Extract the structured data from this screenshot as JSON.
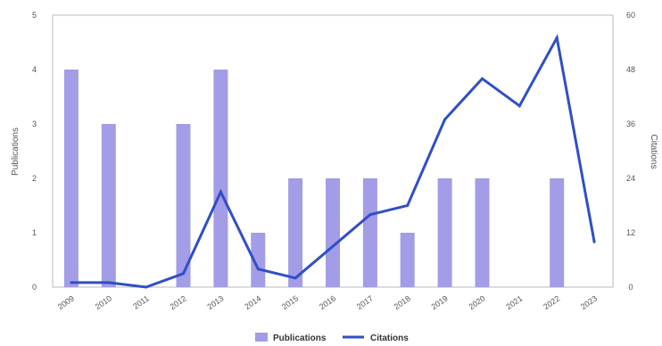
{
  "chart_data": {
    "type": "bar",
    "categories": [
      "2009",
      "2010",
      "2011",
      "2012",
      "2013",
      "2014",
      "2015",
      "2016",
      "2017",
      "2018",
      "2019",
      "2020",
      "2021",
      "2022",
      "2023"
    ],
    "series": [
      {
        "name": "Publications",
        "type": "bar",
        "axis": "left",
        "color": "#a39ce6",
        "values": [
          4,
          3,
          0,
          3,
          4,
          1,
          2,
          2,
          2,
          1,
          2,
          2,
          0,
          2,
          0
        ]
      },
      {
        "name": "Citations",
        "type": "line",
        "axis": "right",
        "color": "#2f4fc6",
        "values": [
          1,
          1,
          0,
          3,
          21,
          4,
          2,
          9,
          16,
          18,
          37,
          46,
          40,
          55,
          10
        ]
      }
    ],
    "ylabel": "Publications",
    "y2label": "Citations",
    "ylim": [
      0,
      5
    ],
    "y2lim": [
      0,
      60
    ],
    "yticks": [
      "0",
      "1",
      "2",
      "3",
      "4",
      "5"
    ],
    "y2ticks": [
      "0",
      "12",
      "24",
      "36",
      "48",
      "60"
    ],
    "grid": false,
    "legend_position": "bottom-center"
  }
}
